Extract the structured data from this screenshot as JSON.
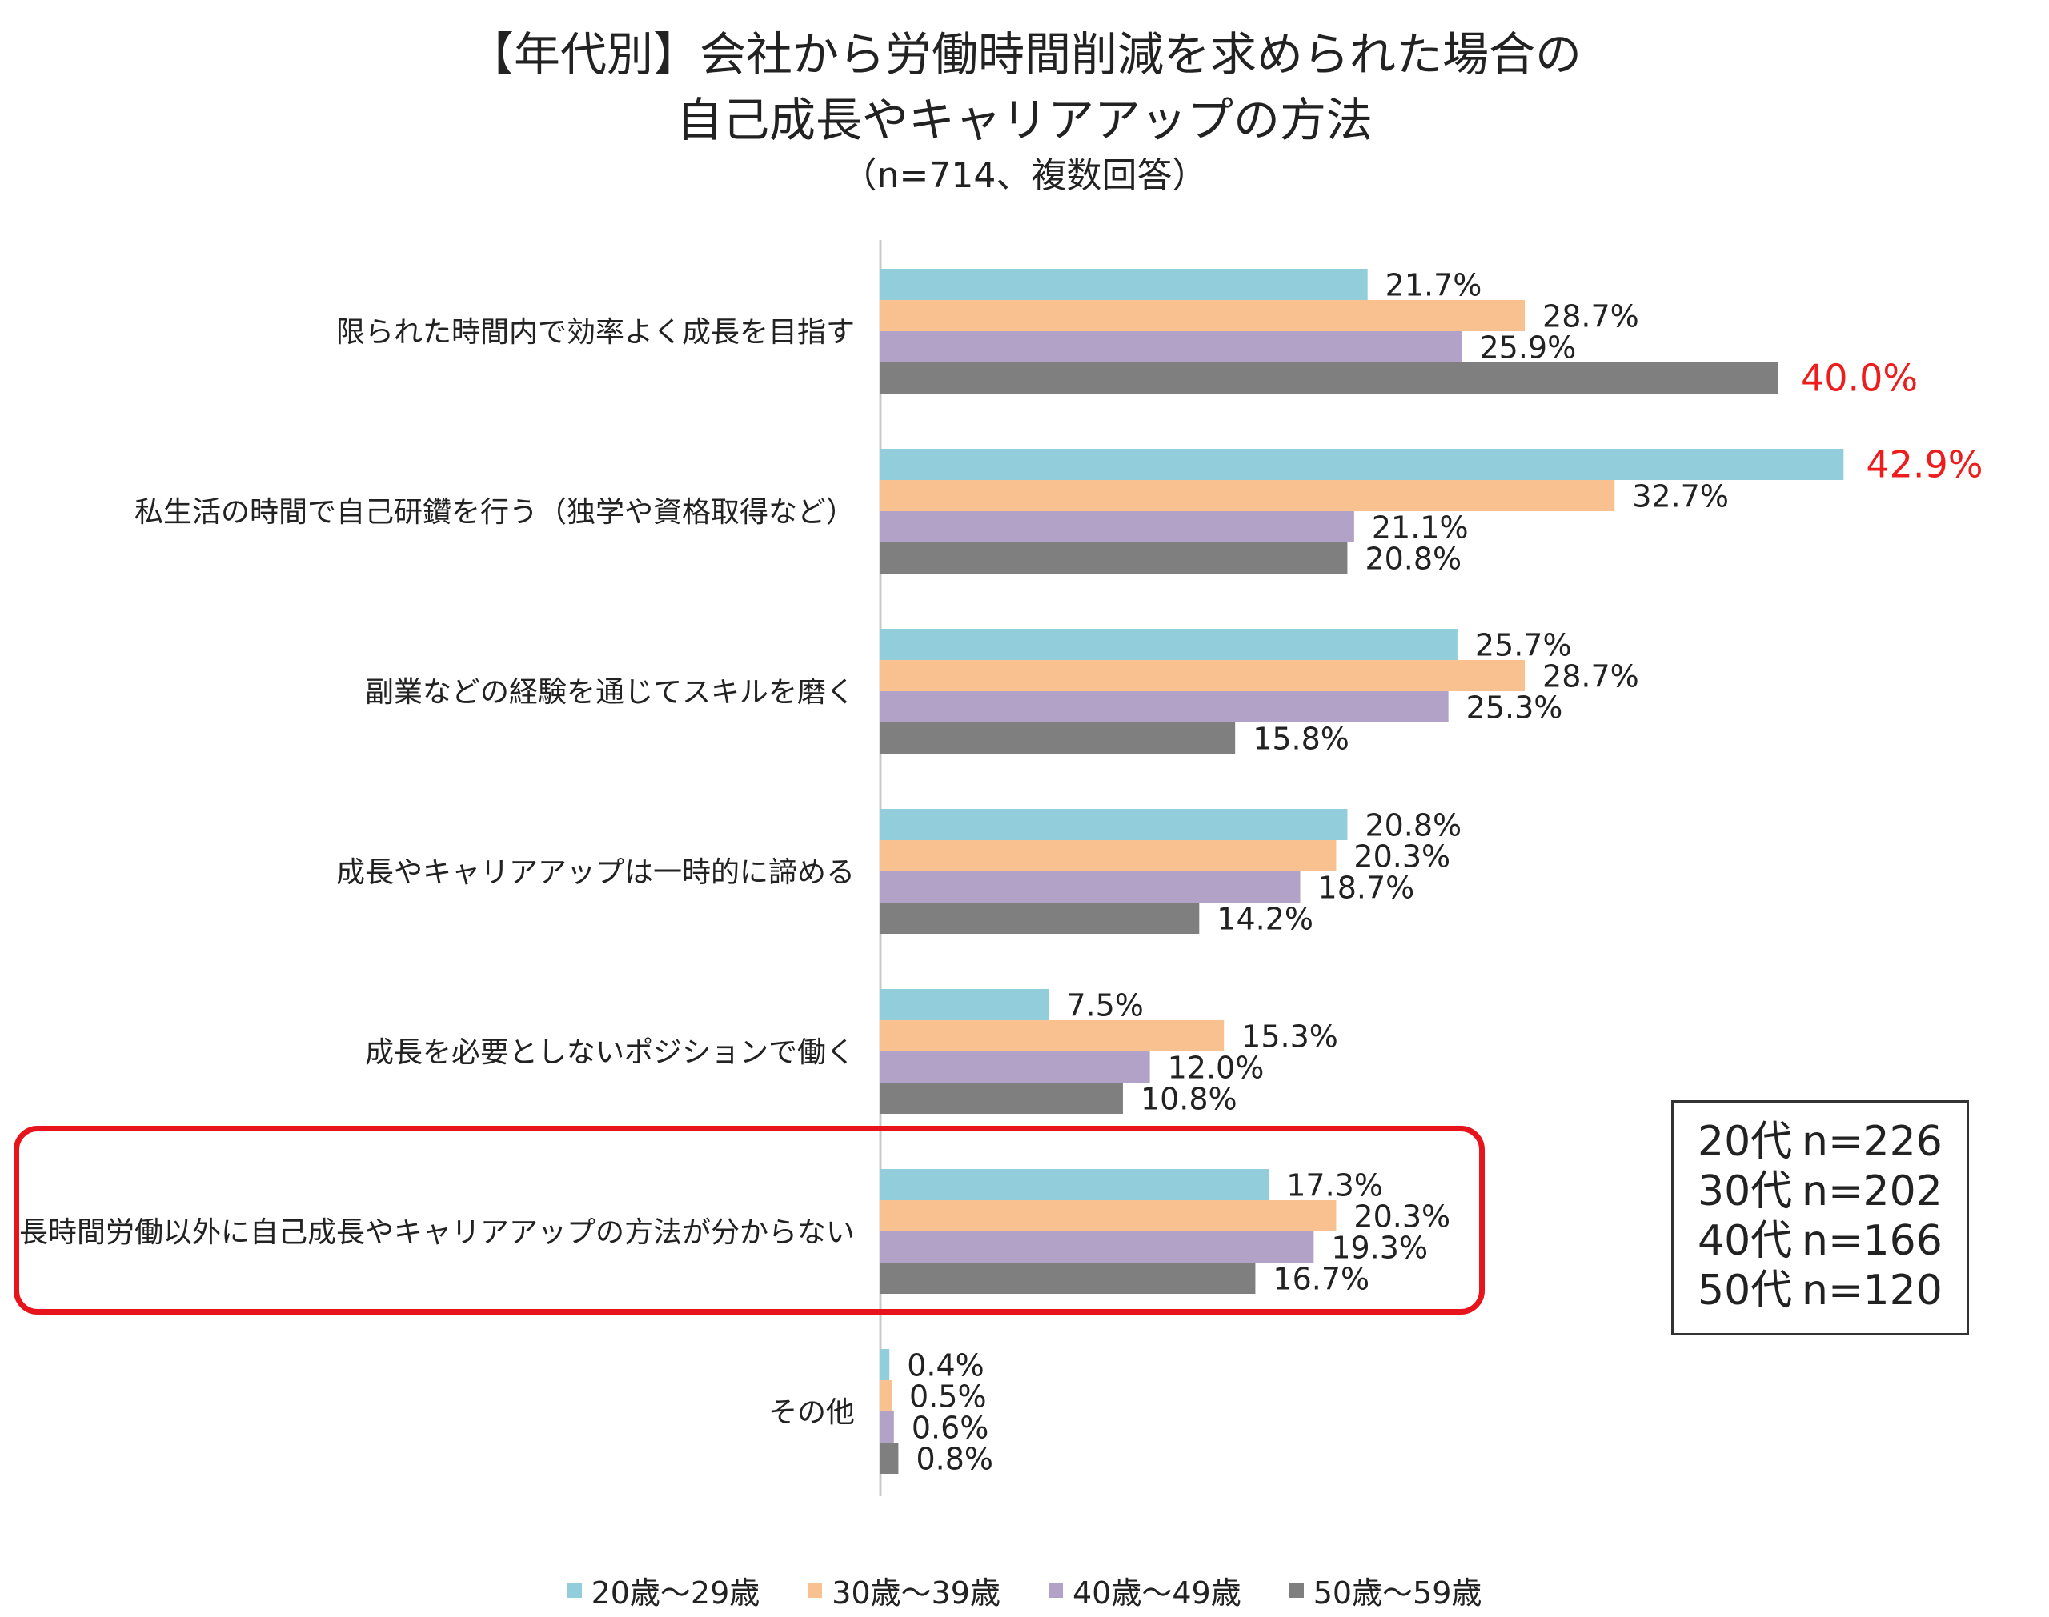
{
  "title": {
    "line1": "【年代別】会社から労働時間削減を求められた場合の",
    "line2": "自己成長やキャリアアップの方法",
    "line3": "（n=714、複数回答）"
  },
  "colors": {
    "s20": "#92cddc",
    "s30": "#f9c18f",
    "s40": "#b3a2c7",
    "s50": "#7f7f7f",
    "highlight": "#ee1c1c",
    "box": "#e8141b"
  },
  "chart_data": {
    "type": "bar",
    "orientation": "horizontal",
    "title": "【年代別】会社から労働時間削減を求められた場合の自己成長やキャリアアップの方法",
    "subtitle": "（n=714、複数回答）",
    "xlabel": "",
    "ylabel": "",
    "xlim": [
      0,
      50
    ],
    "grid": false,
    "legend_position": "bottom",
    "categories": [
      "限られた時間内で効率よく成長を目指す",
      "私生活の時間で自己研鑽を行う（独学や資格取得など）",
      "副業などの経験を通じてスキルを磨く",
      "成長やキャリアアップは一時的に諦める",
      "成長を必要としないポジションで働く",
      "長時間労働以外に自己成長やキャリアアップの方法が分からない",
      "その他"
    ],
    "series": [
      {
        "name": "20歳～29歳",
        "color": "#92cddc",
        "values": [
          21.7,
          42.9,
          25.7,
          20.8,
          7.5,
          17.3,
          0.4
        ]
      },
      {
        "name": "30歳～39歳",
        "color": "#f9c18f",
        "values": [
          28.7,
          32.7,
          28.7,
          20.3,
          15.3,
          20.3,
          0.5
        ]
      },
      {
        "name": "40歳～49歳",
        "color": "#b3a2c7",
        "values": [
          25.9,
          21.1,
          25.3,
          18.7,
          12.0,
          19.3,
          0.6
        ]
      },
      {
        "name": "50歳～59歳",
        "color": "#7f7f7f",
        "values": [
          40.0,
          20.8,
          15.8,
          14.2,
          10.8,
          16.7,
          0.8
        ]
      }
    ],
    "labels": [
      [
        "21.7%",
        "28.7%",
        "25.9%",
        "40.0%"
      ],
      [
        "42.9%",
        "32.7%",
        "21.1%",
        "20.8%"
      ],
      [
        "25.7%",
        "28.7%",
        "25.3%",
        "15.8%"
      ],
      [
        "20.8%",
        "20.3%",
        "18.7%",
        "14.2%"
      ],
      [
        "7.5%",
        "15.3%",
        "12.0%",
        "10.8%"
      ],
      [
        "17.3%",
        "20.3%",
        "19.3%",
        "16.7%"
      ],
      [
        "0.4%",
        "0.5%",
        "0.6%",
        "0.8%"
      ]
    ],
    "highlighted_labels": [
      [
        0,
        3
      ],
      [
        1,
        0
      ]
    ],
    "highlighted_category": 5
  },
  "sample_box": {
    "rows": [
      {
        "group": "20代",
        "n": "n=226"
      },
      {
        "group": "30代",
        "n": "n=202"
      },
      {
        "group": "40代",
        "n": "n=166"
      },
      {
        "group": "50代",
        "n": "n=120"
      }
    ]
  },
  "legend": [
    "20歳～29歳",
    "30歳～39歳",
    "40歳～49歳",
    "50歳～59歳"
  ]
}
